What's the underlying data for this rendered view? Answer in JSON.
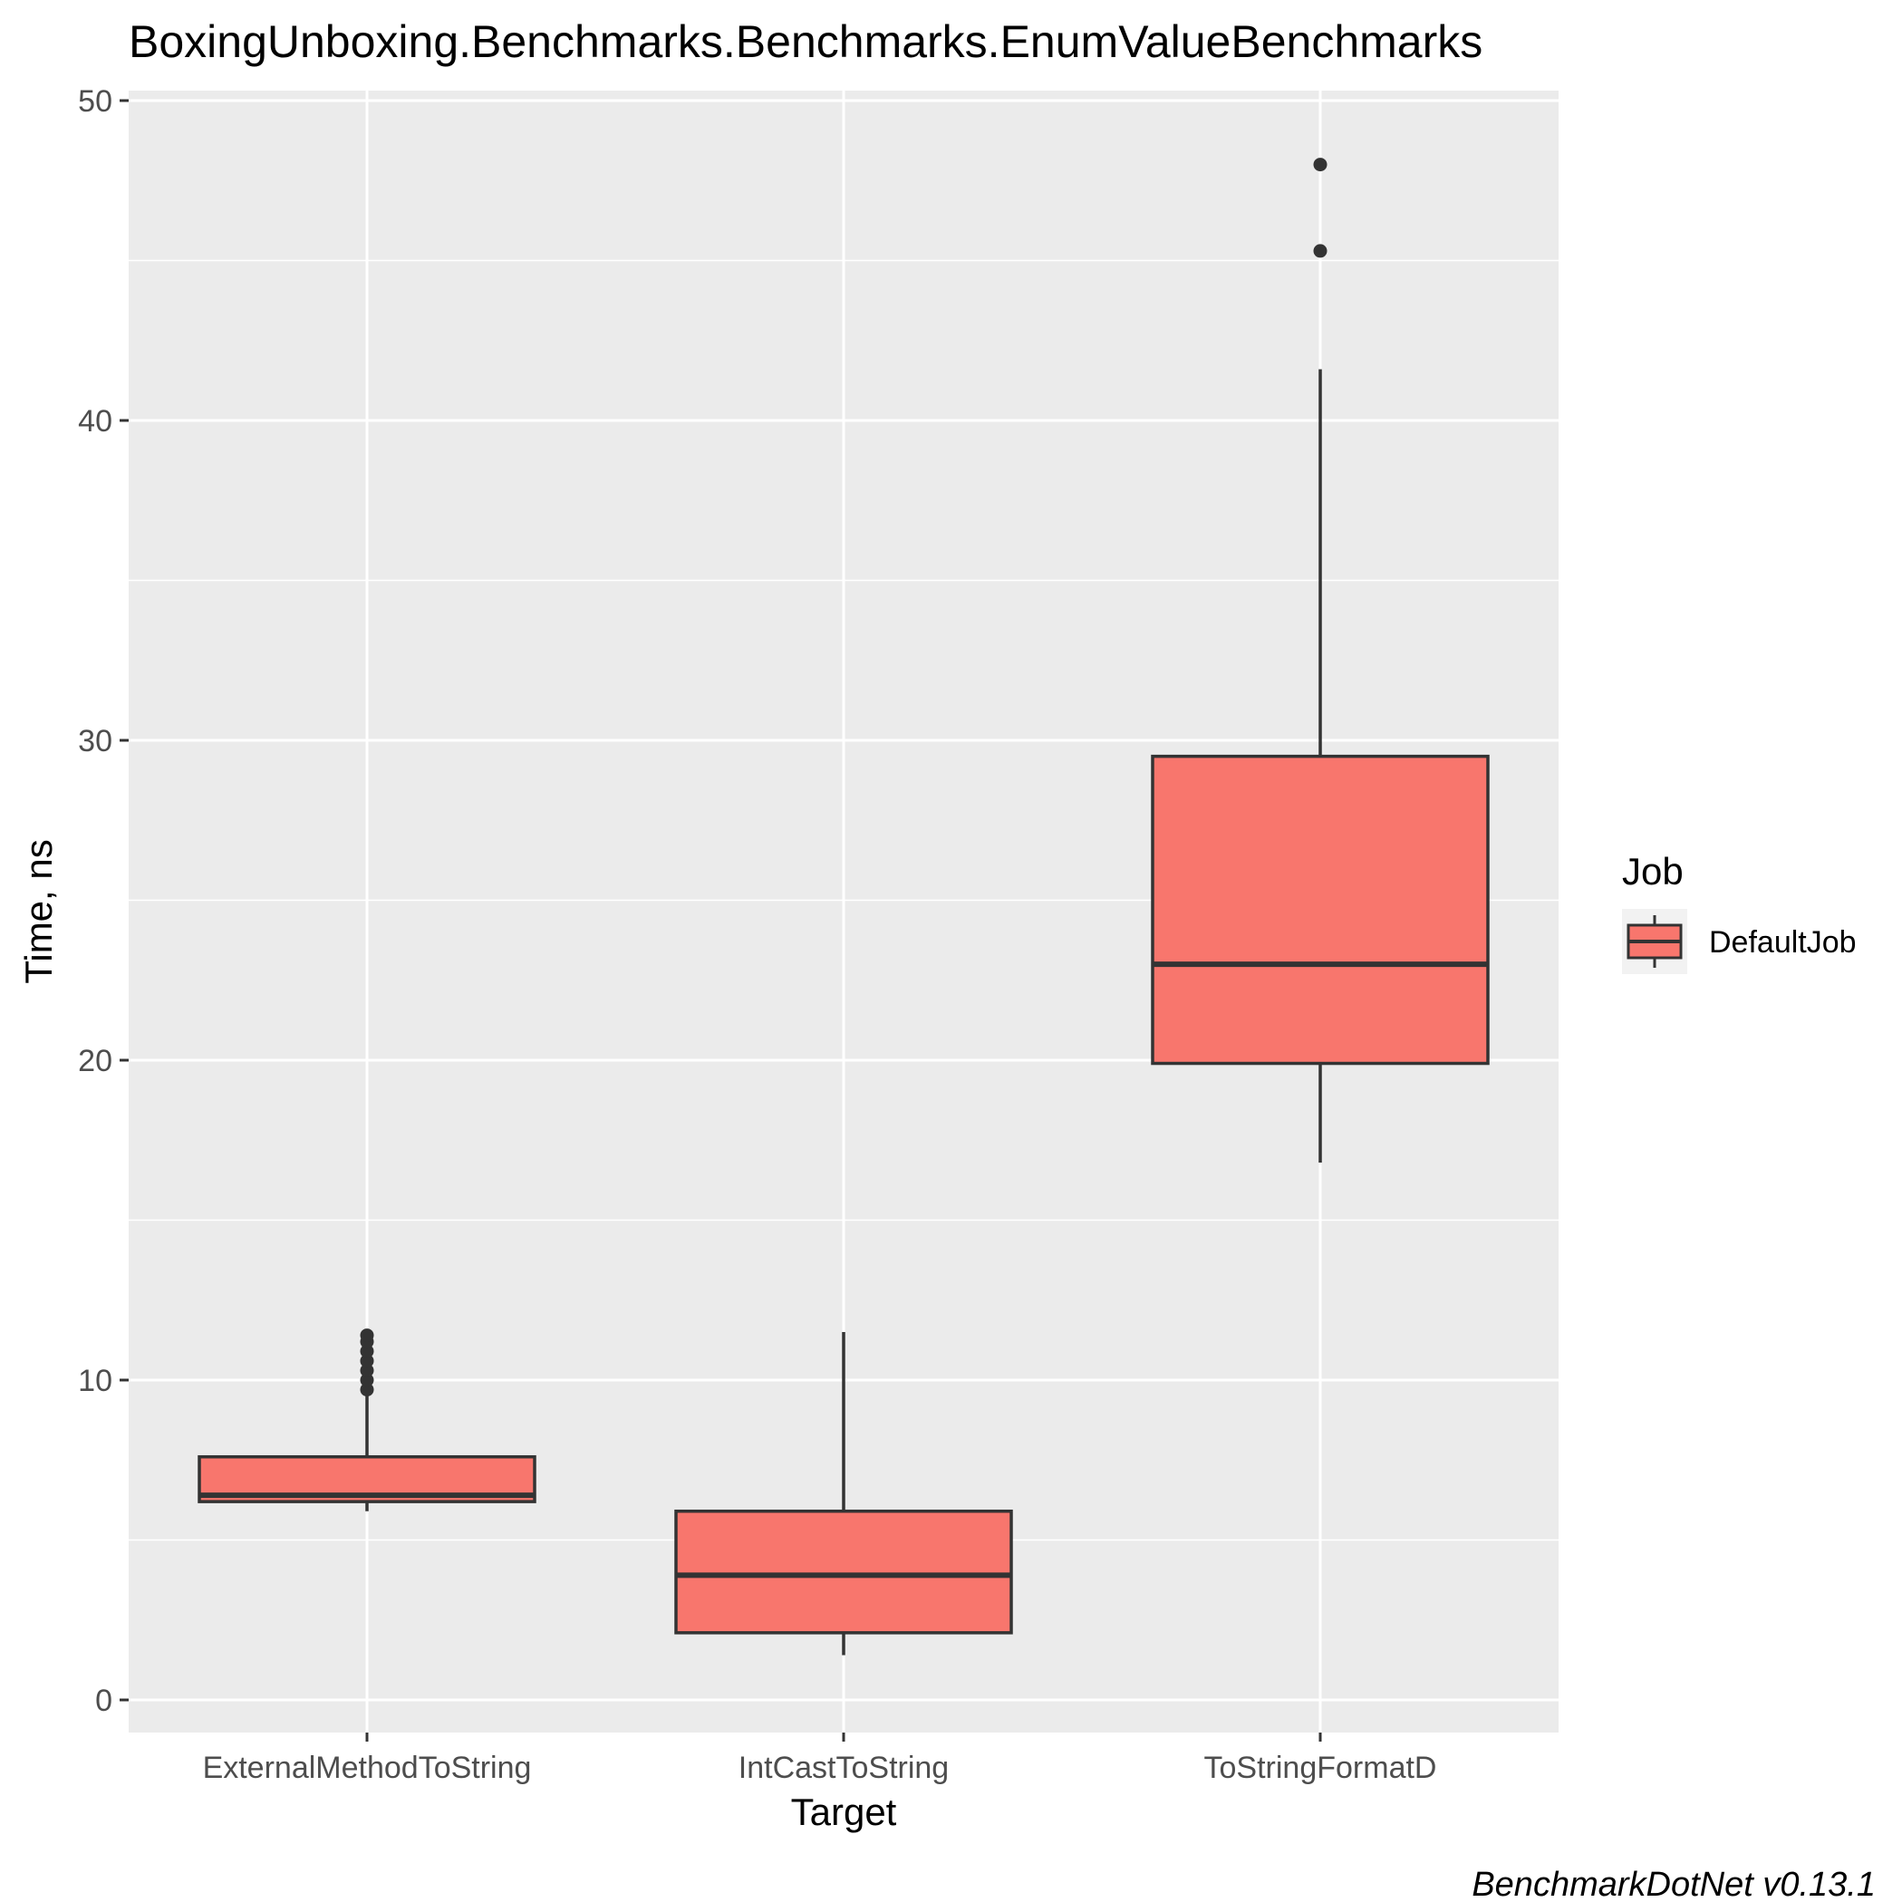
{
  "chart_data": {
    "type": "box",
    "title": "BoxingUnboxing.Benchmarks.Benchmarks.EnumValueBenchmarks",
    "xlabel": "Target",
    "ylabel": "Time, ns",
    "ylim": [
      -1,
      51.3
    ],
    "yticks": [
      0,
      10,
      20,
      30,
      40,
      50
    ],
    "grid": true,
    "categories": [
      "ExternalMethodToString",
      "IntCastToString",
      "ToStringFormatD"
    ],
    "series": [
      {
        "name": "DefaultJob",
        "color": "#F8766D",
        "boxes": [
          {
            "category": "ExternalMethodToString",
            "whisker_low": 5.9,
            "q1": 6.2,
            "median": 6.4,
            "q3": 7.6,
            "whisker_high": 9.6,
            "outliers": [
              9.7,
              10.0,
              10.3,
              10.6,
              10.9,
              11.2,
              11.4
            ]
          },
          {
            "category": "IntCastToString",
            "whisker_low": 1.4,
            "q1": 2.1,
            "median": 3.9,
            "q3": 5.9,
            "whisker_high": 11.5,
            "outliers": []
          },
          {
            "category": "ToStringFormatD",
            "whisker_low": 16.8,
            "q1": 19.9,
            "median": 23.0,
            "q3": 29.5,
            "whisker_high": 41.6,
            "outliers": [
              45.3,
              48.0
            ]
          }
        ]
      }
    ],
    "legend": {
      "title": "Job",
      "position": "right",
      "entries": [
        "DefaultJob"
      ]
    },
    "caption": "BenchmarkDotNet v0.13.1"
  },
  "colors": {
    "panel_background": "#EBEBEB",
    "grid": "#FFFFFF",
    "box_fill": "#F8766D",
    "box_line": "#333333"
  }
}
